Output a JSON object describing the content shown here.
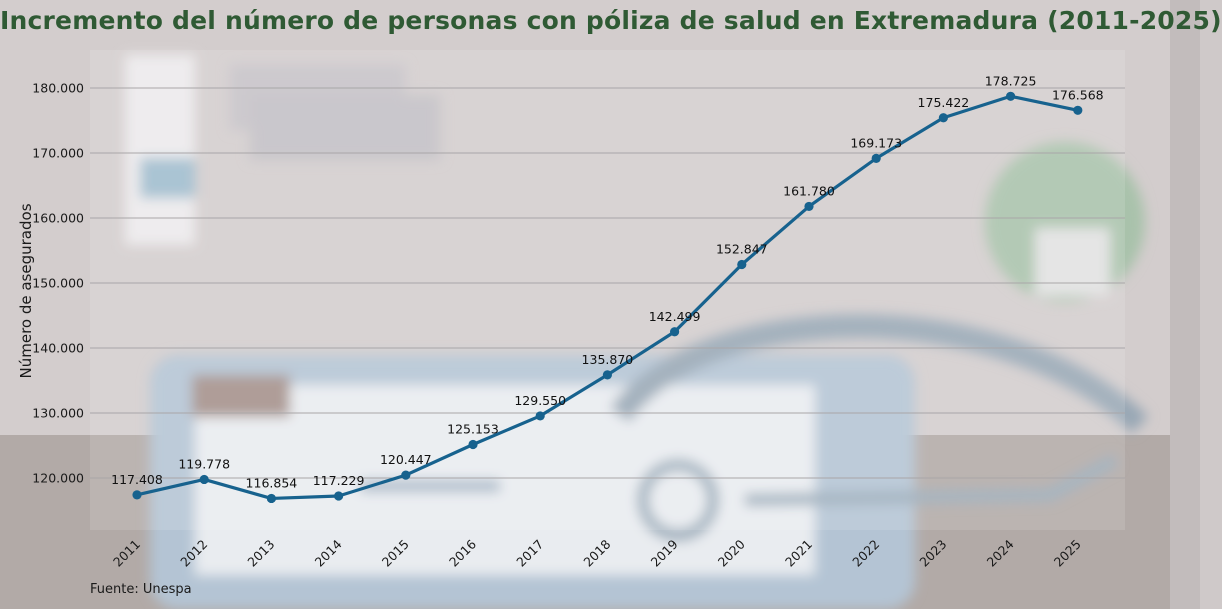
{
  "title": "Incremento del número de personas con póliza de salud en Extremadura (2011-2025)",
  "source": "Fuente: Unespa",
  "colors": {
    "line": "#17628e",
    "title": "#2f5a34"
  },
  "chart_data": {
    "type": "line",
    "title": "Incremento del número de personas con póliza de salud en Extremadura (2011-2025)",
    "xlabel": "",
    "ylabel": "Número de asegurados",
    "categories": [
      "2011",
      "2012",
      "2013",
      "2014",
      "2015",
      "2016",
      "2017",
      "2018",
      "2019",
      "2020",
      "2021",
      "2022",
      "2023",
      "2024",
      "2025"
    ],
    "values": [
      117408,
      119778,
      116854,
      117229,
      120447,
      125153,
      129550,
      135870,
      142499,
      152847,
      161780,
      169173,
      175422,
      178725,
      176568
    ],
    "data_labels": [
      "117.408",
      "119.778",
      "116.854",
      "117.229",
      "120.447",
      "125.153",
      "129.550",
      "135.870",
      "142.499",
      "152.847",
      "161.780",
      "169.173",
      "175.422",
      "178.725",
      "176.568"
    ],
    "yticks": [
      120000,
      130000,
      140000,
      150000,
      160000,
      170000,
      180000
    ],
    "ytick_labels": [
      "120.000",
      "130.000",
      "140.000",
      "150.000",
      "160.000",
      "170.000",
      "180.000"
    ],
    "ylim": [
      112000,
      186000
    ],
    "grid": "horizontal",
    "legend": "none"
  }
}
